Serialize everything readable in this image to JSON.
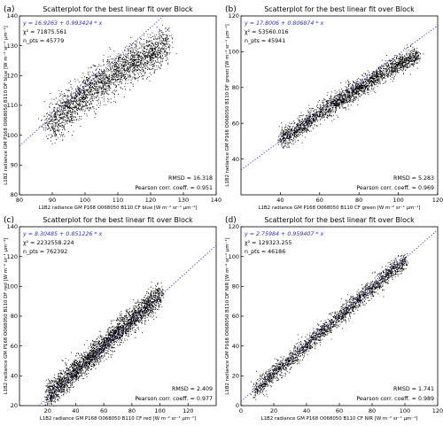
{
  "panel_titles": [
    "Scatterplot for the best linear fit over Block",
    "Scatterplot for the best linear fit over Block",
    "Scatterplot for the best linear fit over Block",
    "Scatterplot for the best linear fit over Block"
  ],
  "colors": {
    "points": "#000000",
    "fit_line": "#2b2bd6",
    "fit_text": "#2b2bd6"
  },
  "chart_data": [
    {
      "type": "scatter",
      "panel_label": "(a)",
      "title": "Scatterplot for the best linear fit over Block",
      "xlabel": "L1B2 radiance GM P168 O068050 B110 CF blue [W m⁻² sr⁻¹ µm⁻¹]",
      "ylabel": "L1B2 radiance GM P168 O068050 B110 DF blue [W m⁻² sr⁻¹ µm⁻¹]",
      "xlim": [
        80,
        140
      ],
      "ylim": [
        80,
        140
      ],
      "xticks": [
        80,
        90,
        100,
        110,
        120,
        130,
        140
      ],
      "yticks": [
        80,
        90,
        100,
        110,
        120,
        130,
        140
      ],
      "fit_equation": "y = 16.9263 + 0.993424 * x",
      "chi2": "χ² = 71875.561",
      "npts": "n_pts = 45779",
      "rmsd": "RMSD = 16.318",
      "pearson": "Pearson corr. coeff. = 0.951",
      "fit": {
        "intercept": 16.9263,
        "slope": 0.993424
      },
      "cloud": [
        [
          89,
          103
        ],
        [
          95,
          109.5
        ],
        [
          100,
          114
        ],
        [
          105,
          118
        ],
        [
          110,
          121.5
        ],
        [
          115,
          124.5
        ],
        [
          120,
          127.5
        ],
        [
          125,
          131
        ]
      ],
      "cloud_spread": 2.6,
      "n_samples": 2600
    },
    {
      "type": "scatter",
      "panel_label": "(b)",
      "title": "Scatterplot for the best linear fit over Block",
      "xlabel": "L1B2 radiance GM P168 O068050 B110 CF green [W m⁻² sr⁻¹ µm⁻¹]",
      "ylabel": "L1B2 radiance GM P168 O068050 B110 DF green [W m⁻² sr⁻¹ µm⁻¹]",
      "xlim": [
        20,
        120
      ],
      "ylim": [
        20,
        120
      ],
      "xticks": [
        40,
        60,
        80,
        100,
        120
      ],
      "yticks": [
        40,
        60,
        80,
        100,
        120
      ],
      "fit_equation": "y = 17.8006 + 0.806874 * x",
      "chi2": "χ² = 53560.016",
      "npts": "n_pts = 45941",
      "rmsd": "RMSD = 5.283",
      "pearson": "Pearson corr. coeff. = 0.969",
      "fit": {
        "intercept": 17.8006,
        "slope": 0.806874
      },
      "cloud": [
        [
          40,
          51
        ],
        [
          50,
          58
        ],
        [
          60,
          66
        ],
        [
          70,
          73
        ],
        [
          80,
          80
        ],
        [
          90,
          87
        ],
        [
          100,
          93.5
        ],
        [
          110,
          98
        ]
      ],
      "cloud_spread": 2.2,
      "n_samples": 2600
    },
    {
      "type": "scatter",
      "panel_label": "(c)",
      "title": "Scatterplot for the best linear fit over Block",
      "xlabel": "L1B2 radiance GM P168 O068050 B110 CF red [W m⁻² sr⁻¹ µm⁻¹]",
      "ylabel": "L1B2 radiance GM P168 O068050 B110 DF red [W m⁻² sr⁻¹ µm⁻¹]",
      "xlim": [
        0,
        140
      ],
      "ylim": [
        20,
        140
      ],
      "xticks": [
        20,
        40,
        60,
        80,
        100,
        120
      ],
      "yticks": [
        20,
        40,
        60,
        80,
        100,
        120,
        140
      ],
      "fit_equation": "y = 8.30485 + 0.851226 * x",
      "chi2": "χ² = 2232558.224",
      "npts": "n_pts = 762392",
      "rmsd": "RMSD = 2.409",
      "pearson": "Pearson corr. coeff. = 0.977",
      "fit": {
        "intercept": 8.30485,
        "slope": 0.851226
      },
      "cloud": [
        [
          20,
          27
        ],
        [
          30,
          35
        ],
        [
          40,
          44
        ],
        [
          50,
          52
        ],
        [
          60,
          61
        ],
        [
          70,
          70
        ],
        [
          80,
          78
        ],
        [
          90,
          86
        ],
        [
          100,
          95
        ]
      ],
      "cloud_spread": 3.4,
      "n_samples": 3200
    },
    {
      "type": "scatter",
      "panel_label": "(d)",
      "title": "Scatterplot for the best linear fit over Block",
      "xlabel": "L1B2 radiance GM P168 O068050 B110 CF NIR [W m⁻² sr⁻¹ µm⁻¹]",
      "ylabel": "L1B2 radiance GM P168 O068050 B110 DF NIR [W m⁻² sr⁻¹ µm⁻¹]",
      "xlim": [
        0,
        120
      ],
      "ylim": [
        0,
        120
      ],
      "xticks": [
        0,
        20,
        40,
        60,
        80,
        100,
        120
      ],
      "yticks": [
        0,
        20,
        40,
        60,
        80,
        100,
        120
      ],
      "fit_equation": "y = 2.75984 + 0.959407 * x",
      "chi2": "χ² = 129323.255",
      "npts": "n_pts = 46186",
      "rmsd": "RMSD = 1.741",
      "pearson": "Pearson corr. coeff. = 0.989",
      "fit": {
        "intercept": 2.75984,
        "slope": 0.959407
      },
      "cloud": [
        [
          8,
          10
        ],
        [
          20,
          22
        ],
        [
          30,
          31
        ],
        [
          40,
          41
        ],
        [
          50,
          50.5
        ],
        [
          60,
          60
        ],
        [
          70,
          70
        ],
        [
          80,
          79
        ],
        [
          90,
          89
        ],
        [
          100,
          98
        ]
      ],
      "cloud_spread": 2.4,
      "n_samples": 2400
    }
  ]
}
